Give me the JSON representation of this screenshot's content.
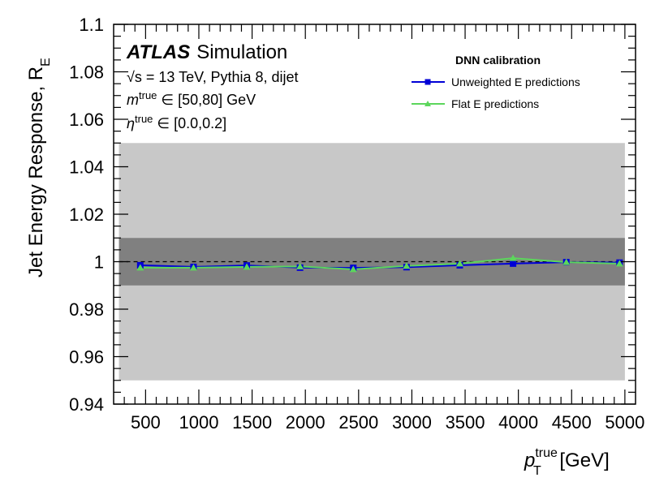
{
  "chart_data": {
    "type": "line",
    "xlabel_main": "p",
    "xlabel_super": "true",
    "xlabel_sub": "T",
    "xlabel_unit": " [GeV]",
    "ylabel_main": "Jet Energy Response, R",
    "ylabel_sub": "E",
    "ylim": [
      0.94,
      1.1
    ],
    "xlim": [
      200,
      5100
    ],
    "x_ticks": [
      500,
      1000,
      1500,
      2000,
      2500,
      3000,
      3500,
      4000,
      4500,
      5000
    ],
    "y_ticks": [
      0.94,
      0.96,
      0.98,
      1.0,
      1.02,
      1.04,
      1.06,
      1.08,
      1.1
    ],
    "y_tick_labels": [
      "0.94",
      "0.96",
      "0.98",
      "1",
      "1.02",
      "1.04",
      "1.06",
      "1.08",
      "1.1"
    ],
    "bands": [
      {
        "name": "5% band",
        "y_range": [
          0.95,
          1.05
        ],
        "x_range": [
          250,
          5000
        ],
        "color": "#c8c8c8"
      },
      {
        "name": "1% band",
        "y_range": [
          0.99,
          1.01
        ],
        "x_range": [
          250,
          5000
        ],
        "color": "#808080"
      }
    ],
    "reference_line": {
      "y": 1.0,
      "style": "dashed"
    },
    "series": [
      {
        "name": "Unweighted E predictions",
        "color": "#0000d6",
        "marker": "square",
        "x": [
          450,
          950,
          1450,
          1950,
          2450,
          2950,
          3450,
          3950,
          4450,
          4950
        ],
        "values": [
          0.9985,
          0.9978,
          0.9984,
          0.9975,
          0.9974,
          0.9977,
          0.9985,
          0.9992,
          0.9998,
          0.9996
        ]
      },
      {
        "name": "Flat E predictions",
        "color": "#5cd65c",
        "marker": "triangle",
        "x": [
          450,
          950,
          1450,
          1950,
          2450,
          2950,
          3450,
          3950,
          4450,
          4950
        ],
        "values": [
          0.9975,
          0.9975,
          0.9978,
          0.998,
          0.9968,
          0.9982,
          0.9992,
          1.0015,
          0.9998,
          0.9992
        ]
      }
    ],
    "legend_title": "DNN calibration",
    "legend_position": "top-right",
    "atlas_label": "ATLAS",
    "atlas_sublabel": "Simulation",
    "annotations": {
      "line1_sqrt": "√s",
      "line1_rest": " = 13 TeV, Pythia 8, dijet",
      "line2_sym": "m",
      "line2_sup": "true",
      "line2_rest": " ∈ [50,80] GeV",
      "line3_sym": "η",
      "line3_sup": "true",
      "line3_rest": " ∈ [0.0,0.2]"
    }
  }
}
